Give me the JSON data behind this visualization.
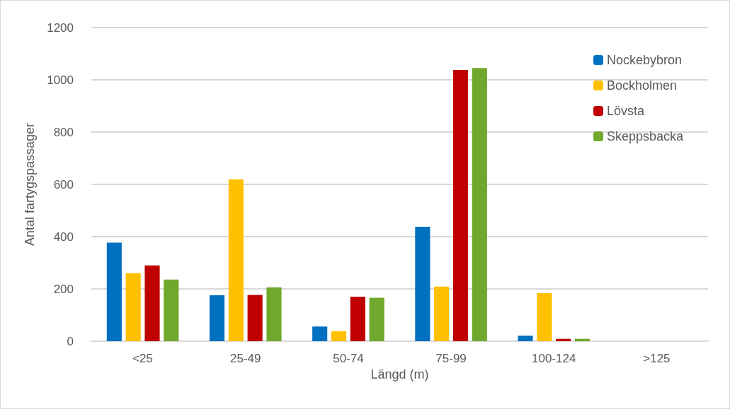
{
  "chart_data": {
    "type": "bar",
    "xlabel": "Längd (m)",
    "ylabel": "Antal fartygspassager",
    "categories": [
      "<25",
      "25-49",
      "50-74",
      "75-99",
      "100-124",
      ">125"
    ],
    "series": [
      {
        "name": "Nockebybron",
        "color": "#0070c0",
        "values": [
          377,
          176,
          56,
          438,
          21,
          0
        ]
      },
      {
        "name": "Bockholmen",
        "color": "#ffc000",
        "values": [
          260,
          619,
          38,
          209,
          184,
          0
        ]
      },
      {
        "name": "Lövsta",
        "color": "#c00000",
        "values": [
          290,
          177,
          170,
          1038,
          9,
          0
        ]
      },
      {
        "name": "Skeppsbacka",
        "color": "#70a82e",
        "values": [
          236,
          206,
          166,
          1045,
          9,
          0
        ]
      }
    ],
    "ylim": [
      0,
      1200
    ],
    "yticks": [
      0,
      200,
      400,
      600,
      800,
      1000,
      1200
    ],
    "grid": "y",
    "legend": "top right"
  }
}
